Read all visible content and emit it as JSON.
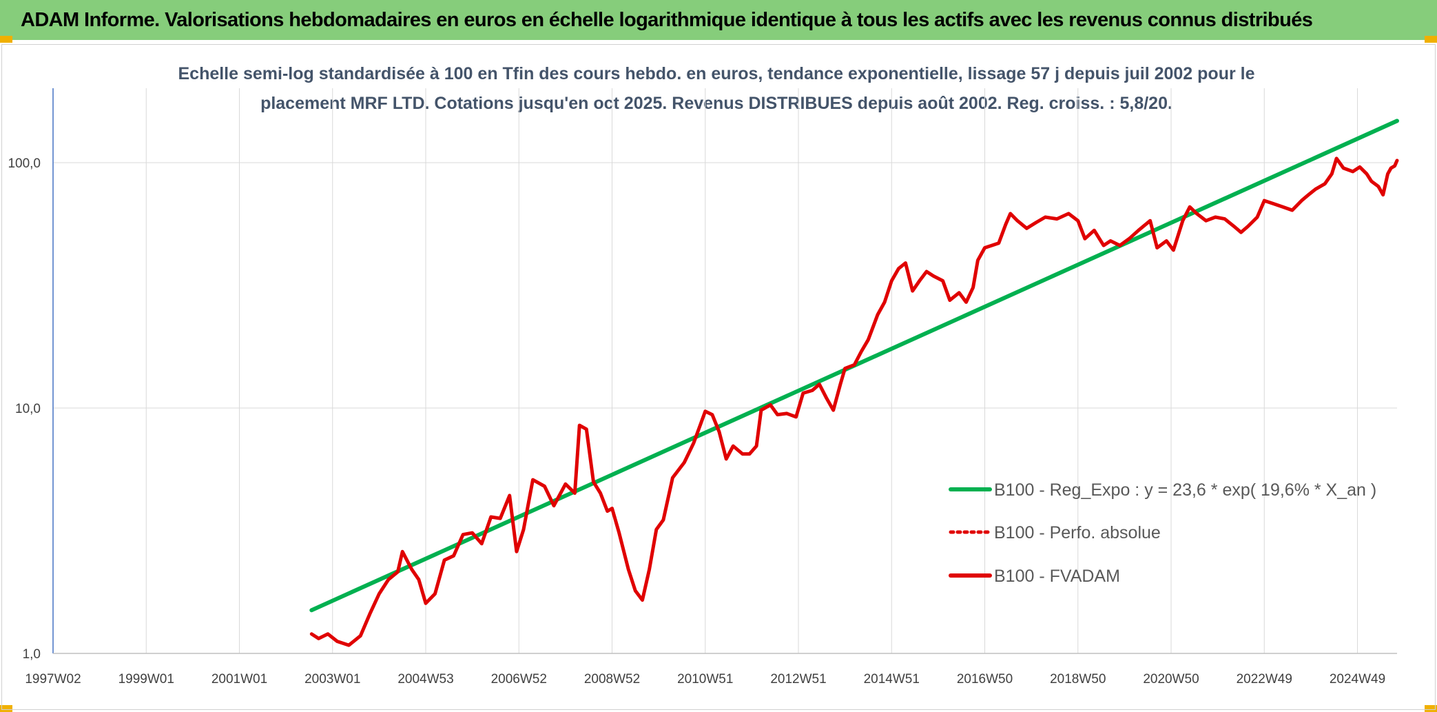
{
  "header": {
    "title": "ADAM Informe. Valorisations hebdomadaires en euros en échelle logarithmique identique à tous les actifs avec les revenus connus distribués"
  },
  "chart_data": {
    "type": "line",
    "title_lines": [
      "Echelle semi-log standardisée à 100 en Tfin des cours hebdo. en euros, tendance exponentielle, lissage 57 j depuis juil 2002 pour le",
      "placement MRF LTD. Cotations jusqu'en oct 2025. Revenus DISTRIBUES depuis août 2002. Reg. croiss. : 5,8/20."
    ],
    "y_scale": "log",
    "ylim": [
      1,
      160
    ],
    "y_ticks": [
      {
        "value": 1,
        "label": "1,0"
      },
      {
        "value": 10,
        "label": "10,0"
      },
      {
        "value": 100,
        "label": "100,0"
      }
    ],
    "xlim": [
      1997.0,
      2025.85
    ],
    "x_ticks": [
      {
        "value": 1997.0,
        "label": "1997W02"
      },
      {
        "value": 1999.0,
        "label": "1999W01"
      },
      {
        "value": 2001.0,
        "label": "2001W01"
      },
      {
        "value": 2003.0,
        "label": "2003W01"
      },
      {
        "value": 2005.0,
        "label": "2004W53"
      },
      {
        "value": 2007.0,
        "label": "2006W52"
      },
      {
        "value": 2009.0,
        "label": "2008W52"
      },
      {
        "value": 2011.0,
        "label": "2010W51"
      },
      {
        "value": 2013.0,
        "label": "2012W51"
      },
      {
        "value": 2015.0,
        "label": "2014W51"
      },
      {
        "value": 2017.0,
        "label": "2016W50"
      },
      {
        "value": 2019.0,
        "label": "2018W50"
      },
      {
        "value": 2021.0,
        "label": "2020W50"
      },
      {
        "value": 2023.0,
        "label": "2022W49"
      },
      {
        "value": 2025.0,
        "label": "2024W49"
      }
    ],
    "grid": true,
    "legend_position": "right-middle",
    "series": [
      {
        "name": "B100 - Reg_Expo : y = 23,6 * exp( 19,6% *  X_an )",
        "color": "#00b050",
        "style": "solid",
        "points": [
          [
            2002.55,
            1.5
          ],
          [
            2025.85,
            148
          ]
        ]
      },
      {
        "name": "B100 - Perfo. absolue",
        "color": "#e00000",
        "style": "dotted",
        "points": []
      },
      {
        "name": "B100 - FVADAM",
        "color": "#e00000",
        "style": "solid",
        "points": [
          [
            2002.55,
            1.2
          ],
          [
            2002.7,
            1.15
          ],
          [
            2002.9,
            1.2
          ],
          [
            2003.1,
            1.12
          ],
          [
            2003.35,
            1.08
          ],
          [
            2003.6,
            1.18
          ],
          [
            2003.8,
            1.45
          ],
          [
            2004.0,
            1.75
          ],
          [
            2004.2,
            2.0
          ],
          [
            2004.4,
            2.15
          ],
          [
            2004.5,
            2.6
          ],
          [
            2004.7,
            2.2
          ],
          [
            2004.85,
            2.0
          ],
          [
            2005.0,
            1.6
          ],
          [
            2005.2,
            1.75
          ],
          [
            2005.4,
            2.4
          ],
          [
            2005.6,
            2.5
          ],
          [
            2005.8,
            3.05
          ],
          [
            2006.0,
            3.1
          ],
          [
            2006.2,
            2.8
          ],
          [
            2006.4,
            3.6
          ],
          [
            2006.6,
            3.55
          ],
          [
            2006.8,
            4.4
          ],
          [
            2006.95,
            2.6
          ],
          [
            2007.1,
            3.2
          ],
          [
            2007.3,
            5.1
          ],
          [
            2007.55,
            4.8
          ],
          [
            2007.75,
            4.0
          ],
          [
            2008.0,
            4.9
          ],
          [
            2008.2,
            4.5
          ],
          [
            2008.3,
            8.5
          ],
          [
            2008.45,
            8.2
          ],
          [
            2008.6,
            5.0
          ],
          [
            2008.75,
            4.5
          ],
          [
            2008.9,
            3.8
          ],
          [
            2009.0,
            3.9
          ],
          [
            2009.15,
            3.1
          ],
          [
            2009.35,
            2.2
          ],
          [
            2009.5,
            1.8
          ],
          [
            2009.65,
            1.65
          ],
          [
            2009.8,
            2.2
          ],
          [
            2009.95,
            3.2
          ],
          [
            2010.1,
            3.5
          ],
          [
            2010.3,
            5.2
          ],
          [
            2010.55,
            6.0
          ],
          [
            2010.75,
            7.2
          ],
          [
            2010.9,
            8.6
          ],
          [
            2011.0,
            9.7
          ],
          [
            2011.15,
            9.4
          ],
          [
            2011.3,
            8.0
          ],
          [
            2011.45,
            6.2
          ],
          [
            2011.6,
            7.0
          ],
          [
            2011.8,
            6.5
          ],
          [
            2011.95,
            6.5
          ],
          [
            2012.1,
            7.0
          ],
          [
            2012.2,
            9.8
          ],
          [
            2012.4,
            10.3
          ],
          [
            2012.55,
            9.4
          ],
          [
            2012.75,
            9.5
          ],
          [
            2012.95,
            9.2
          ],
          [
            2013.1,
            11.5
          ],
          [
            2013.3,
            11.8
          ],
          [
            2013.45,
            12.5
          ],
          [
            2013.6,
            11.0
          ],
          [
            2013.75,
            9.8
          ],
          [
            2013.9,
            12.5
          ],
          [
            2014.0,
            14.5
          ],
          [
            2014.2,
            15.0
          ],
          [
            2014.35,
            17.0
          ],
          [
            2014.5,
            19.0
          ],
          [
            2014.7,
            24.0
          ],
          [
            2014.85,
            27.0
          ],
          [
            2015.0,
            33.0
          ],
          [
            2015.15,
            37.0
          ],
          [
            2015.3,
            39.0
          ],
          [
            2015.45,
            30.0
          ],
          [
            2015.6,
            33.0
          ],
          [
            2015.75,
            36.0
          ],
          [
            2015.9,
            34.5
          ],
          [
            2016.1,
            33.0
          ],
          [
            2016.25,
            27.5
          ],
          [
            2016.45,
            29.5
          ],
          [
            2016.6,
            27.0
          ],
          [
            2016.75,
            31.0
          ],
          [
            2016.85,
            40.0
          ],
          [
            2017.0,
            45.0
          ],
          [
            2017.15,
            46.0
          ],
          [
            2017.3,
            47.0
          ],
          [
            2017.45,
            56.0
          ],
          [
            2017.55,
            62.0
          ],
          [
            2017.7,
            58.0
          ],
          [
            2017.9,
            54.0
          ],
          [
            2018.1,
            57.0
          ],
          [
            2018.3,
            60.0
          ],
          [
            2018.55,
            59.0
          ],
          [
            2018.8,
            62.0
          ],
          [
            2019.0,
            58.0
          ],
          [
            2019.15,
            49.0
          ],
          [
            2019.35,
            53.0
          ],
          [
            2019.55,
            46.0
          ],
          [
            2019.7,
            48.0
          ],
          [
            2019.9,
            46.0
          ],
          [
            2020.1,
            49.0
          ],
          [
            2020.3,
            53.0
          ],
          [
            2020.55,
            58.0
          ],
          [
            2020.7,
            45.0
          ],
          [
            2020.9,
            48.0
          ],
          [
            2021.05,
            44.0
          ],
          [
            2021.25,
            58.0
          ],
          [
            2021.4,
            66.0
          ],
          [
            2021.55,
            62.0
          ],
          [
            2021.75,
            58.0
          ],
          [
            2021.95,
            60.0
          ],
          [
            2022.15,
            59.0
          ],
          [
            2022.35,
            55.0
          ],
          [
            2022.5,
            52.0
          ],
          [
            2022.65,
            55.0
          ],
          [
            2022.85,
            60.0
          ],
          [
            2023.0,
            70.0
          ],
          [
            2023.2,
            68.0
          ],
          [
            2023.4,
            66.0
          ],
          [
            2023.6,
            64.0
          ],
          [
            2023.8,
            70.0
          ],
          [
            2023.95,
            74.0
          ],
          [
            2024.1,
            78.0
          ],
          [
            2024.3,
            82.0
          ],
          [
            2024.45,
            90.0
          ],
          [
            2024.55,
            104.0
          ],
          [
            2024.7,
            95.0
          ],
          [
            2024.9,
            92.0
          ],
          [
            2025.05,
            96.0
          ],
          [
            2025.2,
            90.0
          ],
          [
            2025.3,
            84.0
          ],
          [
            2025.45,
            80.0
          ],
          [
            2025.55,
            74.0
          ],
          [
            2025.65,
            90.0
          ],
          [
            2025.72,
            95.0
          ],
          [
            2025.8,
            97.0
          ],
          [
            2025.85,
            102.0
          ]
        ]
      }
    ]
  }
}
